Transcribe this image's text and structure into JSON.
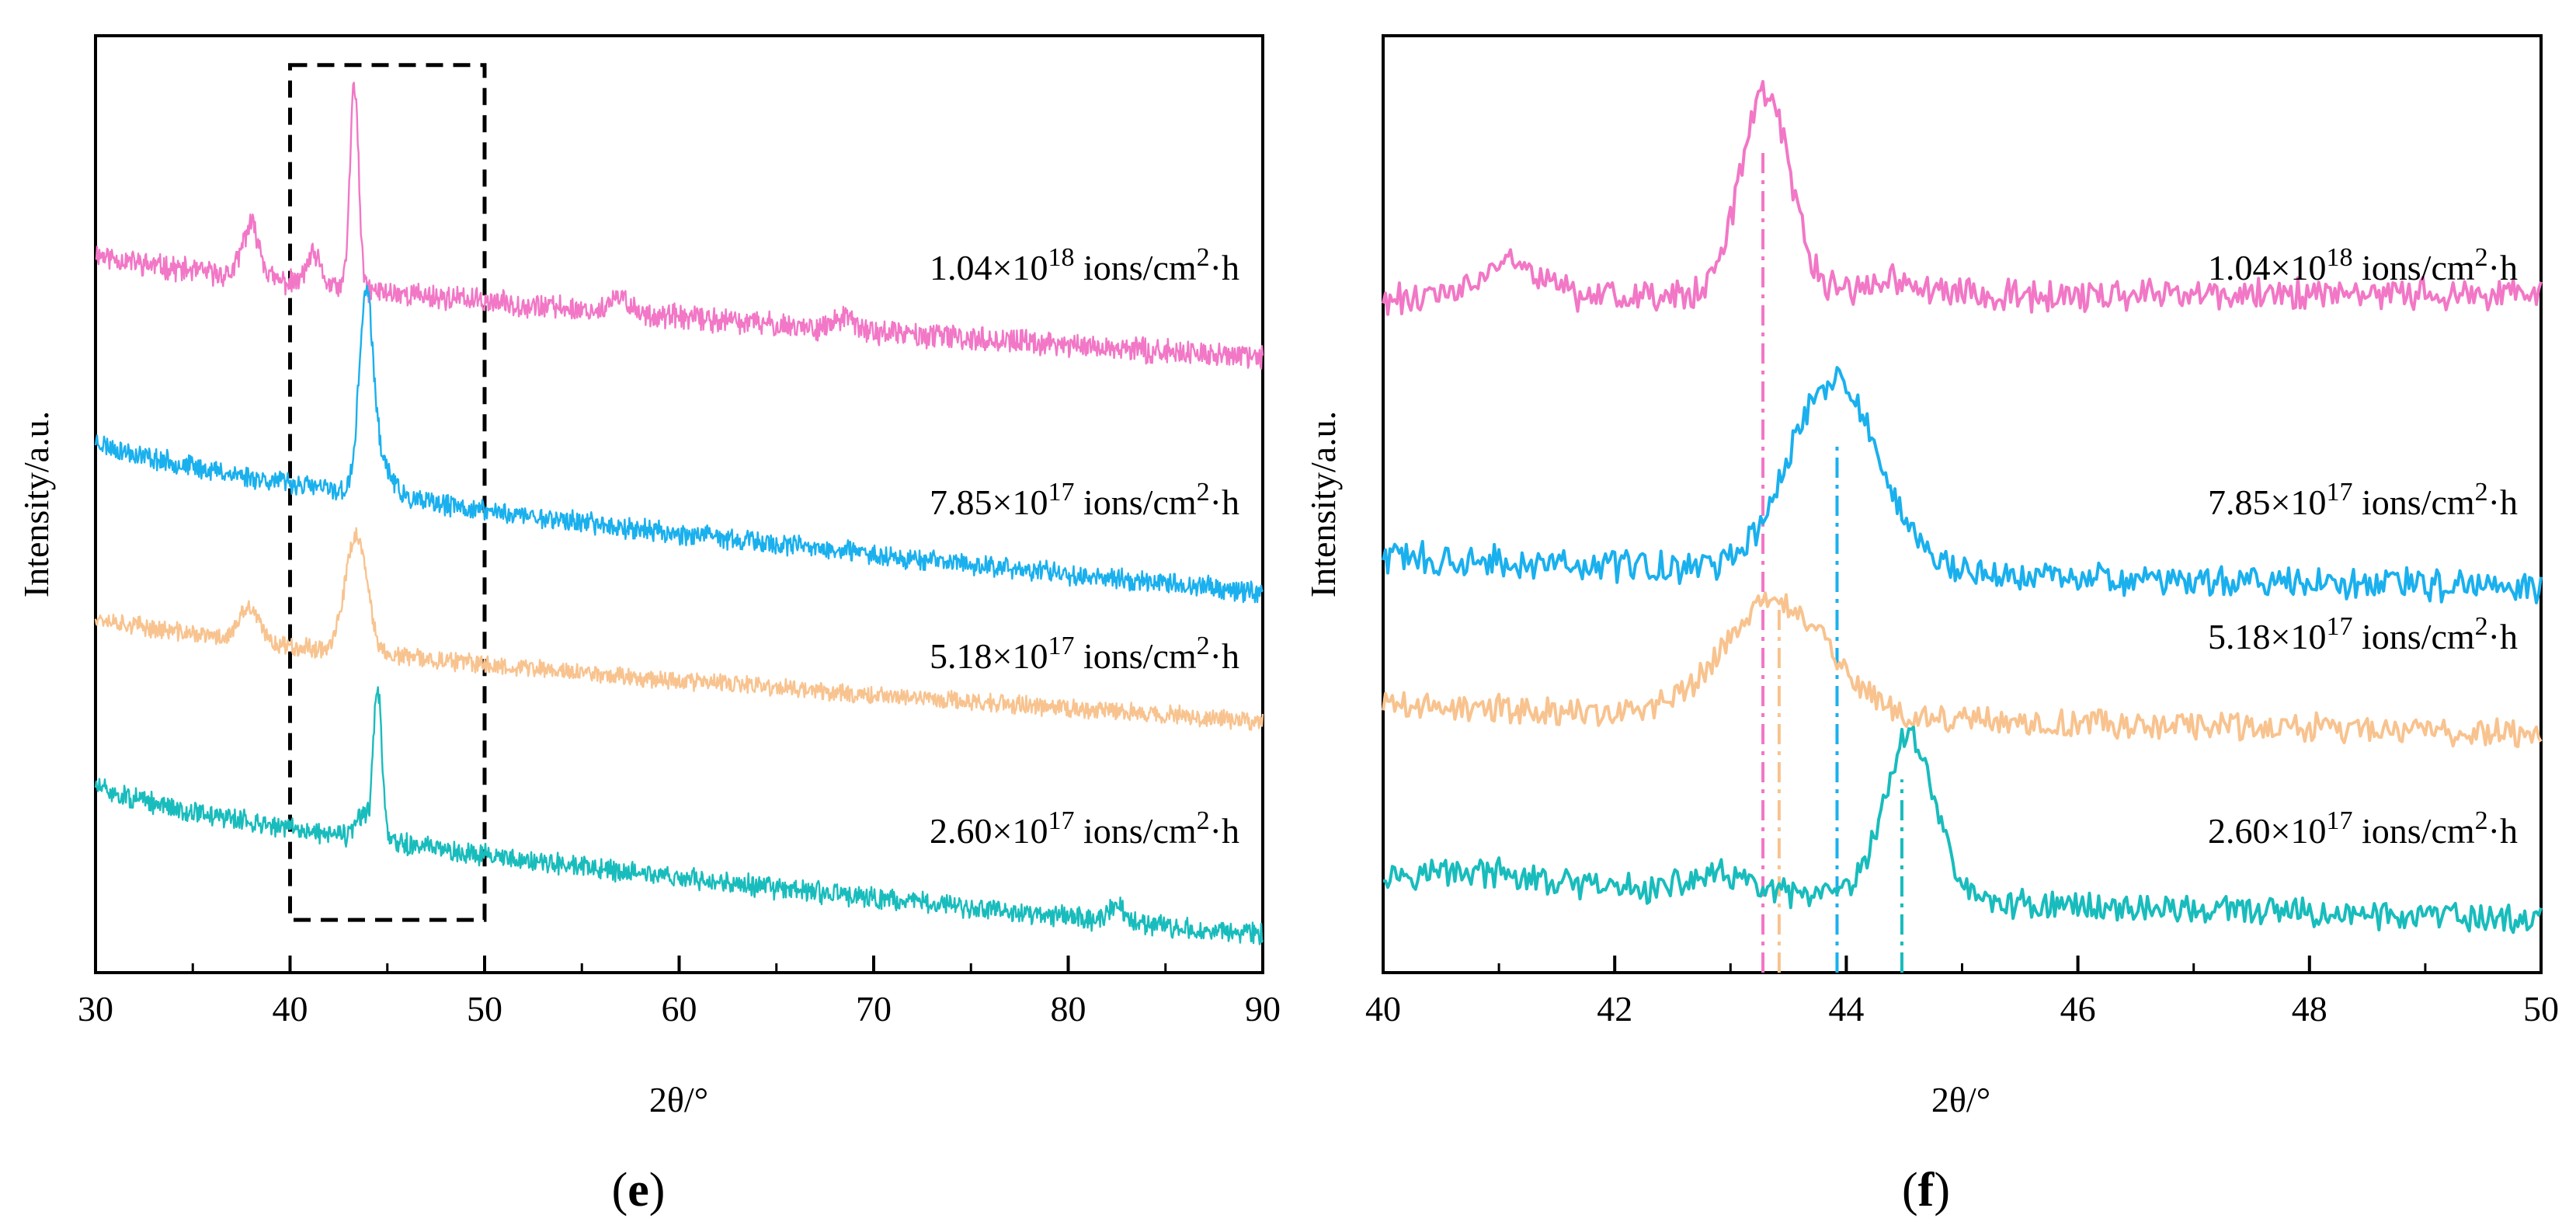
{
  "figure": {
    "background": "#ffffff"
  },
  "chart_data": [
    {
      "type": "line",
      "panel": "e",
      "panel_label": "e",
      "xlabel": "2θ/°",
      "ylabel": "Intensity/a.u.",
      "xlim": [
        30,
        90
      ],
      "ylim": [
        0,
        8
      ],
      "xticks": [
        30,
        40,
        50,
        60,
        70,
        80,
        90
      ],
      "xtick_labels": [
        "30",
        "40",
        "50",
        "60",
        "70",
        "80",
        "90"
      ],
      "minor_tick_step": 5,
      "grid": false,
      "y_tick_labels": false,
      "annotation": {
        "type": "dashed-rectangle",
        "x_range": [
          40,
          50
        ],
        "y_range": [
          0.45,
          7.75
        ],
        "color": "#000000"
      },
      "series": [
        {
          "name": "1.04×10^18 ions/cm^2·h",
          "label": {
            "mantissa": "1.04×10",
            "exp": "18",
            "unit": " ions/cm",
            "unit_exp": "2",
            "suffix": "·h"
          },
          "color": "#F277C6",
          "baseline_start": 6.15,
          "baseline_end": 5.25,
          "noise": 0.09,
          "seed": 11,
          "peaks": [
            {
              "x": 38.0,
              "h": 0.45,
              "w": 0.45
            },
            {
              "x": 41.2,
              "h": 0.25,
              "w": 0.35
            },
            {
              "x": 43.3,
              "h": 1.75,
              "w": 0.22
            },
            {
              "x": 57.0,
              "h": 0.12,
              "w": 0.5
            },
            {
              "x": 68.5,
              "h": 0.1,
              "w": 0.5
            }
          ]
        },
        {
          "name": "7.85×10^17 ions/cm^2·h",
          "label": {
            "mantissa": "7.85×10",
            "exp": "17",
            "unit": " ions/cm",
            "unit_exp": "2",
            "suffix": "·h"
          },
          "color": "#1AB0EE",
          "baseline_start": 4.55,
          "baseline_end": 3.25,
          "noise": 0.08,
          "seed": 23,
          "peaks": [
            {
              "x": 43.9,
              "h": 1.6,
              "w": 0.35
            },
            {
              "x": 44.6,
              "h": 0.3,
              "w": 0.6
            }
          ]
        },
        {
          "name": "5.18×10^17 ions/cm^2·h",
          "label": {
            "mantissa": "5.18×10",
            "exp": "17",
            "unit": " ions/cm",
            "unit_exp": "2",
            "suffix": "·h"
          },
          "color": "#F8C38F",
          "baseline_start": 3.05,
          "baseline_end": 2.15,
          "noise": 0.07,
          "seed": 37,
          "peaks": [
            {
              "x": 37.9,
              "h": 0.28,
              "w": 0.5
            },
            {
              "x": 43.4,
              "h": 1.0,
              "w": 0.55
            }
          ]
        },
        {
          "name": "2.60×10^17 ions/cm^2·h",
          "label": {
            "mantissa": "2.60×10",
            "exp": "17",
            "unit": " ions/cm",
            "unit_exp": "2",
            "suffix": "·h"
          },
          "color": "#19BCBC",
          "baseline_start": 1.6,
          "baseline_end": 0.32,
          "noise": 0.08,
          "seed": 51,
          "peaks": [
            {
              "x": 43.7,
              "h": 0.2,
              "w": 0.3
            },
            {
              "x": 44.5,
              "h": 1.3,
              "w": 0.22
            },
            {
              "x": 82.5,
              "h": 0.12,
              "w": 0.4
            }
          ]
        }
      ]
    },
    {
      "type": "line",
      "panel": "f",
      "panel_label": "f",
      "xlabel": "2θ/°",
      "ylabel": "Intensity/a.u.",
      "xlim": [
        40,
        50
      ],
      "ylim": [
        0,
        8
      ],
      "xticks": [
        40,
        42,
        44,
        46,
        48,
        50
      ],
      "xtick_labels": [
        "40",
        "42",
        "44",
        "46",
        "48",
        "50"
      ],
      "minor_tick_step": 1,
      "grid": false,
      "y_tick_labels": false,
      "reference_lines": [
        {
          "x": 43.28,
          "color": "#F277C6",
          "y_top": 7.0
        },
        {
          "x": 43.42,
          "color": "#F8C38F",
          "y_top": 3.1
        },
        {
          "x": 43.92,
          "color": "#1AB0EE",
          "y_top": 4.55
        },
        {
          "x": 44.48,
          "color": "#19BCBC",
          "y_top": 1.65
        }
      ],
      "series": [
        {
          "name": "1.04×10^18 ions/cm^2·h",
          "label": {
            "mantissa": "1.04×10",
            "exp": "18",
            "unit": " ions/cm",
            "unit_exp": "2",
            "suffix": "·h"
          },
          "color": "#F277C6",
          "baseline_start": 5.75,
          "baseline_end": 5.8,
          "noise": 0.12,
          "seed": 61,
          "peaks": [
            {
              "x": 41.1,
              "h": 0.3,
              "w": 0.25
            },
            {
              "x": 43.3,
              "h": 1.7,
              "w": 0.22
            },
            {
              "x": 44.4,
              "h": 0.12,
              "w": 0.3
            }
          ]
        },
        {
          "name": "7.85×10^17 ions/cm^2·h",
          "label": {
            "mantissa": "7.85×10",
            "exp": "17",
            "unit": " ions/cm",
            "unit_exp": "2",
            "suffix": "·h"
          },
          "color": "#1AB0EE",
          "baseline_start": 3.55,
          "baseline_end": 3.3,
          "noise": 0.12,
          "seed": 73,
          "peaks": [
            {
              "x": 43.9,
              "h": 1.65,
              "w": 0.38
            }
          ]
        },
        {
          "name": "5.18×10^17 ions/cm^2·h",
          "label": {
            "mantissa": "5.18×10",
            "exp": "17",
            "unit": " ions/cm",
            "unit_exp": "2",
            "suffix": "·h"
          },
          "color": "#F8C38F",
          "baseline_start": 2.3,
          "baseline_end": 2.05,
          "noise": 0.11,
          "seed": 89,
          "peaks": [
            {
              "x": 43.4,
              "h": 1.0,
              "w": 0.45
            }
          ]
        },
        {
          "name": "2.60×10^17 ions/cm^2·h",
          "label": {
            "mantissa": "2.60×10",
            "exp": "17",
            "unit": " ions/cm",
            "unit_exp": "2",
            "suffix": "·h"
          },
          "color": "#19BCBC",
          "baseline_start": 0.85,
          "baseline_end": 0.45,
          "noise": 0.11,
          "seed": 97,
          "peaks": [
            {
              "x": 40.8,
              "h": 0.08,
              "w": 0.4
            },
            {
              "x": 42.9,
              "h": 0.15,
              "w": 0.25
            },
            {
              "x": 44.55,
              "h": 1.4,
              "w": 0.22
            }
          ]
        }
      ]
    }
  ]
}
